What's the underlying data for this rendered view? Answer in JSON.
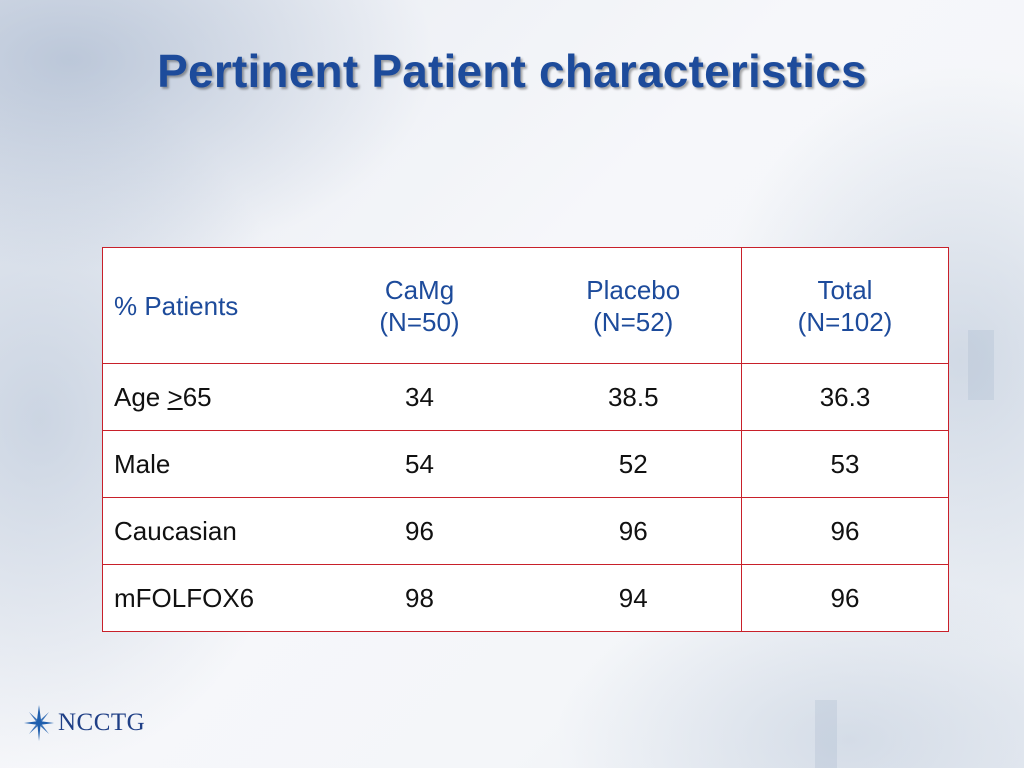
{
  "slide": {
    "title": "Pertinent Patient characteristics"
  },
  "table": {
    "header": {
      "label": "% Patients",
      "columns": [
        {
          "name": "CaMg",
          "n": "(N=50)"
        },
        {
          "name": "Placebo",
          "n": "(N=52)"
        },
        {
          "name": "Total",
          "n": "(N=102)"
        }
      ]
    },
    "rows": [
      {
        "label_prefix": "Age ",
        "label_symbol": ">",
        "label_suffix": "65",
        "values": [
          "34",
          "38.5",
          "36.3"
        ]
      },
      {
        "label": "Male",
        "values": [
          "54",
          "52",
          "53"
        ]
      },
      {
        "label": "Caucasian",
        "values": [
          "96",
          "96",
          "96"
        ]
      },
      {
        "label": "mFOLFOX6",
        "values": [
          "98",
          "94",
          "96"
        ]
      }
    ]
  },
  "logo": {
    "text": "NCCTG",
    "icon": "star-icon"
  },
  "colors": {
    "title": "#1d4b9b",
    "header_text": "#1d4b9b",
    "table_border": "#c8202a",
    "logo_star": "#1f5fae",
    "logo_text": "#1f3f86"
  }
}
